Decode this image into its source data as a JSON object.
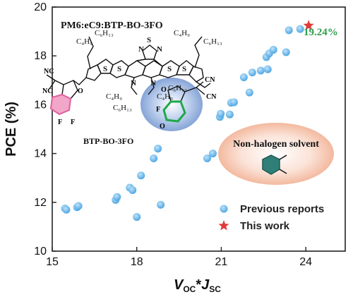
{
  "chart_data": {
    "type": "scatter",
    "xlabel_main": "V",
    "xlabel_sub1": "OC",
    "xlabel_star": "*",
    "xlabel_main2": "J",
    "xlabel_sub2": "SC",
    "ylabel": "PCE (%)",
    "xlim": [
      15,
      25.4
    ],
    "ylim": [
      10,
      20
    ],
    "xticks": [
      15,
      18,
      21,
      24
    ],
    "yticks": [
      10,
      12,
      14,
      16,
      18,
      20
    ],
    "grid": false,
    "legend_position": "bottom-right",
    "series": [
      {
        "name": "Previous reports",
        "marker": "circle",
        "color": "#5aade5",
        "points": [
          [
            15.45,
            11.75
          ],
          [
            15.5,
            11.7
          ],
          [
            15.88,
            11.8
          ],
          [
            15.93,
            11.85
          ],
          [
            17.25,
            12.1
          ],
          [
            17.3,
            12.22
          ],
          [
            17.75,
            12.6
          ],
          [
            17.85,
            12.5
          ],
          [
            18.15,
            13.1
          ],
          [
            18.0,
            11.4
          ],
          [
            18.6,
            13.8
          ],
          [
            18.75,
            14.2
          ],
          [
            18.85,
            11.9
          ],
          [
            20.5,
            13.8
          ],
          [
            20.7,
            14.0
          ],
          [
            20.95,
            15.5
          ],
          [
            20.98,
            15.63
          ],
          [
            21.3,
            15.6
          ],
          [
            21.35,
            16.08
          ],
          [
            21.45,
            16.1
          ],
          [
            21.8,
            17.12
          ],
          [
            22.0,
            16.5
          ],
          [
            22.1,
            17.32
          ],
          [
            22.4,
            17.4
          ],
          [
            22.65,
            17.45
          ],
          [
            22.6,
            17.95
          ],
          [
            22.7,
            18.1
          ],
          [
            22.85,
            18.25
          ],
          [
            23.3,
            18.15
          ],
          [
            23.4,
            19.05
          ],
          [
            23.8,
            19.1
          ]
        ]
      },
      {
        "name": "This work",
        "marker": "star",
        "color": "#e03a3a",
        "points": [
          [
            24.1,
            19.24
          ]
        ]
      }
    ],
    "annotations": {
      "value_label": "19.24%",
      "value_label_color": "#2f9e4f"
    }
  },
  "inset": {
    "title": "PM6:eC9:BTP-BO-3FO",
    "molecule_name": "BTP-BO-3FO",
    "solvent_title": "Non-halogen solvent",
    "atoms": {
      "c4h9": "C₄H₉",
      "c6h13": "C₆H₁₃",
      "n": "N",
      "s": "S",
      "o": "O",
      "f": "F",
      "cn": "CN",
      "nc": "NC"
    },
    "colors": {
      "pink_ring": "#f2a6c8",
      "green_ring": "#1fa84a",
      "blue_glow": "#8fb0de",
      "solvent_bubble": "#f6c7b2",
      "toluene_ring": "#2f7f78"
    }
  }
}
